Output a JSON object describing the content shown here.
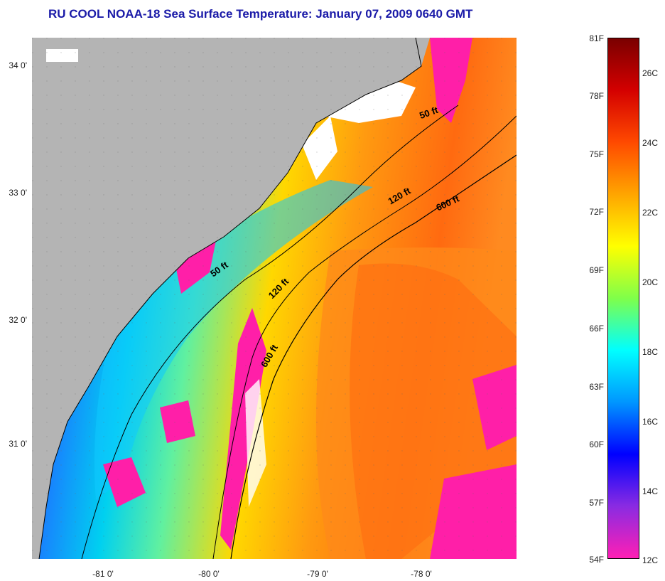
{
  "title": "RU COOL  NOAA-18  Sea Surface Temperature:  January 07, 2009 0640 GMT",
  "latitude_labels": [
    "34 0'",
    "33 0'",
    "32 0'",
    "31 0'"
  ],
  "longitude_labels": [
    "-81 0'",
    "-80 0'",
    "-79 0'",
    "-78 0'"
  ],
  "isobath_labels": [
    {
      "text": "50 ft"
    },
    {
      "text": "50 ft"
    },
    {
      "text": "120 ft"
    },
    {
      "text": "120 ft"
    },
    {
      "text": "600 ft"
    },
    {
      "text": "600 ft"
    }
  ],
  "colorbar": {
    "fahrenheit_labels": [
      "81F",
      "78F",
      "75F",
      "72F",
      "69F",
      "66F",
      "63F",
      "60F",
      "57F",
      "54F"
    ],
    "celsius_labels": [
      "26C",
      "24C",
      "22C",
      "20C",
      "18C",
      "16C",
      "14C",
      "12C"
    ],
    "colors": [
      "#7a0000",
      "#d40000",
      "#ff4a00",
      "#ffa500",
      "#ffff00",
      "#7fff4a",
      "#00ffff",
      "#0096ff",
      "#0000ff",
      "#8a2be2",
      "#ff1fb4"
    ]
  },
  "colors": {
    "land": "#b4b4b4",
    "title": "#1a1aa8",
    "cloud_mask": "#ff1fa8"
  }
}
